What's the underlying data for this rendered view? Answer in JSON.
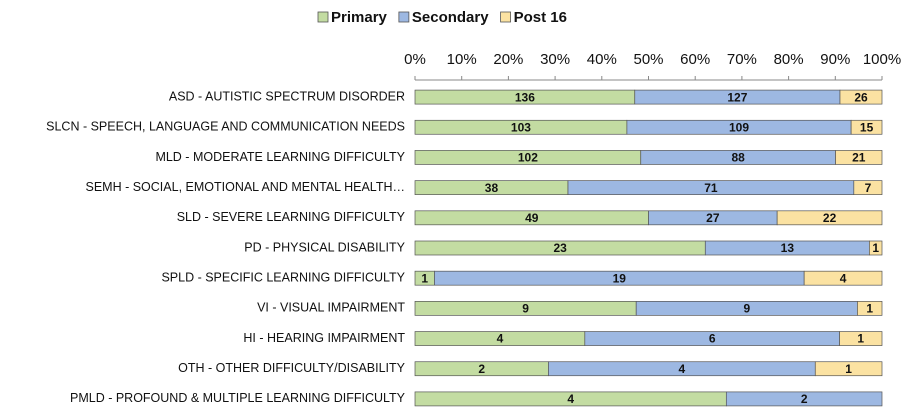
{
  "chart_data": {
    "type": "bar_percent_stacked",
    "orientation": "horizontal",
    "categories": [
      "ASD - AUTISTIC SPECTRUM DISORDER",
      "SLCN - SPEECH, LANGUAGE AND COMMUNICATION NEEDS",
      "MLD - MODERATE LEARNING DIFFICULTY",
      "SEMH - SOCIAL, EMOTIONAL AND MENTAL HEALTH…",
      "SLD - SEVERE LEARNING DIFFICULTY",
      "PD - PHYSICAL DISABILITY",
      "SPLD - SPECIFIC LEARNING DIFFICULTY",
      "VI - VISUAL IMPAIRMENT",
      "HI - HEARING IMPAIRMENT",
      "OTH - OTHER DIFFICULTY/DISABILITY",
      "PMLD - PROFOUND & MULTIPLE LEARNING DIFFICULTY"
    ],
    "series": [
      {
        "name": "Primary",
        "color": "#c3dca2",
        "values": [
          136,
          103,
          102,
          38,
          49,
          23,
          1,
          9,
          4,
          2,
          4
        ]
      },
      {
        "name": "Secondary",
        "color": "#9db8e2",
        "values": [
          127,
          109,
          88,
          71,
          27,
          13,
          19,
          9,
          6,
          4,
          2
        ]
      },
      {
        "name": "Post 16",
        "color": "#fbe2a2",
        "values": [
          26,
          15,
          21,
          7,
          22,
          1,
          4,
          1,
          1,
          1,
          0
        ]
      }
    ],
    "xlim": [
      0,
      100
    ],
    "xticks": [
      {
        "value": 0,
        "label": "0%"
      },
      {
        "value": 10,
        "label": "10%"
      },
      {
        "value": 20,
        "label": "20%"
      },
      {
        "value": 30,
        "label": "30%"
      },
      {
        "value": 40,
        "label": "40%"
      },
      {
        "value": 50,
        "label": "50%"
      },
      {
        "value": 60,
        "label": "60%"
      },
      {
        "value": 70,
        "label": "70%"
      },
      {
        "value": 80,
        "label": "80%"
      },
      {
        "value": 90,
        "label": "90%"
      },
      {
        "value": 100,
        "label": "100%"
      }
    ],
    "legend": "top",
    "grid": false
  }
}
